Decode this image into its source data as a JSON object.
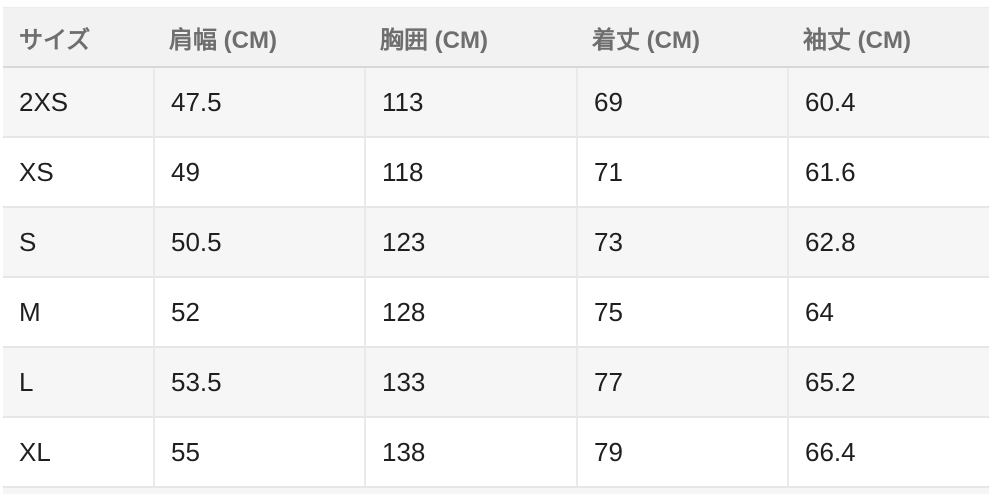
{
  "chart_data": {
    "type": "table",
    "columns": [
      "サイズ",
      "肩幅 (CM)",
      "胸囲 (CM)",
      "着丈 (CM)",
      "袖丈 (CM)"
    ],
    "rows": [
      [
        "2XS",
        "47.5",
        "113",
        "69",
        "60.4"
      ],
      [
        "XS",
        "49",
        "118",
        "71",
        "61.6"
      ],
      [
        "S",
        "50.5",
        "123",
        "73",
        "62.8"
      ],
      [
        "M",
        "52",
        "128",
        "75",
        "64"
      ],
      [
        "L",
        "53.5",
        "133",
        "77",
        "65.2"
      ],
      [
        "XL",
        "55",
        "138",
        "79",
        "66.4"
      ]
    ],
    "layout": {
      "striped_rows": true,
      "stripe_pattern": "odd-rows-gray",
      "partial_next_row_visible_at_bottom": true
    }
  },
  "colors": {
    "header_bg": "#f2f2f2",
    "header_text": "#6e6e6e",
    "stripe_bg": "#f6f6f6",
    "body_text": "#1f1f1f",
    "grid_line": "#e6e6e6",
    "header_border": "#d8d8d8"
  }
}
